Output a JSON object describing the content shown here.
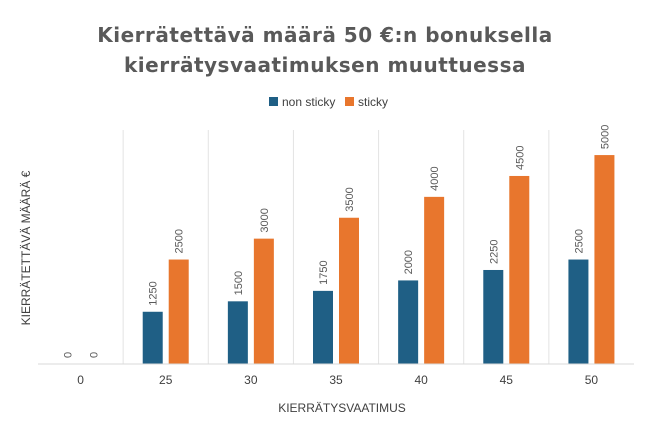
{
  "chart_data": {
    "type": "bar",
    "title_lines": [
      "Kierrätettävä määrä 50 €:n bonuksella",
      "kierrätysvaatimuksen muuttuessa"
    ],
    "categories": [
      "0",
      "25",
      "30",
      "35",
      "40",
      "45",
      "50"
    ],
    "series": [
      {
        "name": "non sticky",
        "color": "#1f5f85",
        "values": [
          0,
          1250,
          1500,
          1750,
          2000,
          2250,
          2500
        ]
      },
      {
        "name": "sticky",
        "color": "#e8762d",
        "values": [
          0,
          2500,
          3000,
          3500,
          4000,
          4500,
          5000
        ]
      }
    ],
    "xlabel": "KIERRÄTYSVAATIMUS",
    "ylabel": "KIERRÄTETTÄVÄ MÄÄRÄ €",
    "ylim": [
      0,
      5600
    ],
    "legend_position": "top-center",
    "grid": "vertical category separators",
    "data_labels": "rotated above bars"
  }
}
